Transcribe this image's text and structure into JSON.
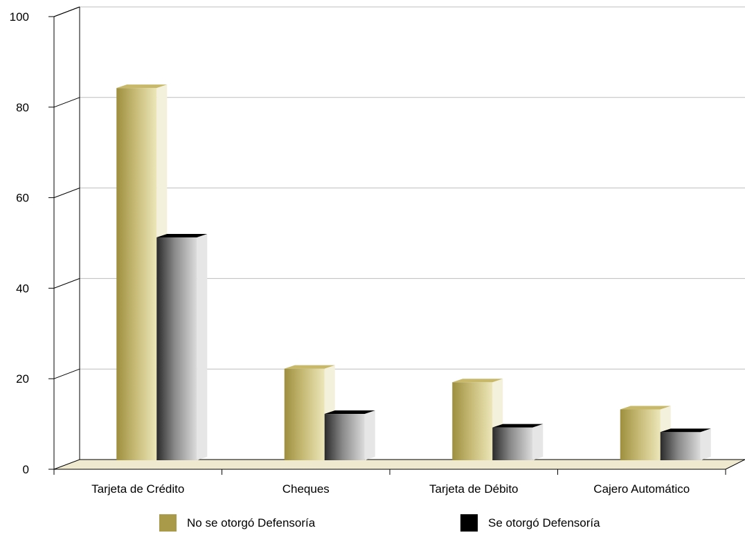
{
  "chart_data": {
    "type": "bar",
    "categories": [
      "Tarjeta de Crédito",
      "Cheques",
      "Tarjeta de Débito",
      "Cajero Automático"
    ],
    "series": [
      {
        "name": "No se otorgó Defensoría",
        "values": [
          83,
          21,
          18,
          12
        ],
        "color": "#a89a48"
      },
      {
        "name": "Se otorgó Defensoría",
        "values": [
          50,
          11,
          8,
          7
        ],
        "color": "#000000"
      }
    ],
    "yticks": [
      "0",
      "20",
      "40",
      "60",
      "80",
      "100"
    ],
    "ylim": [
      0,
      100
    ],
    "grid": true,
    "legend_position": "bottom",
    "style": "3d-bars"
  }
}
